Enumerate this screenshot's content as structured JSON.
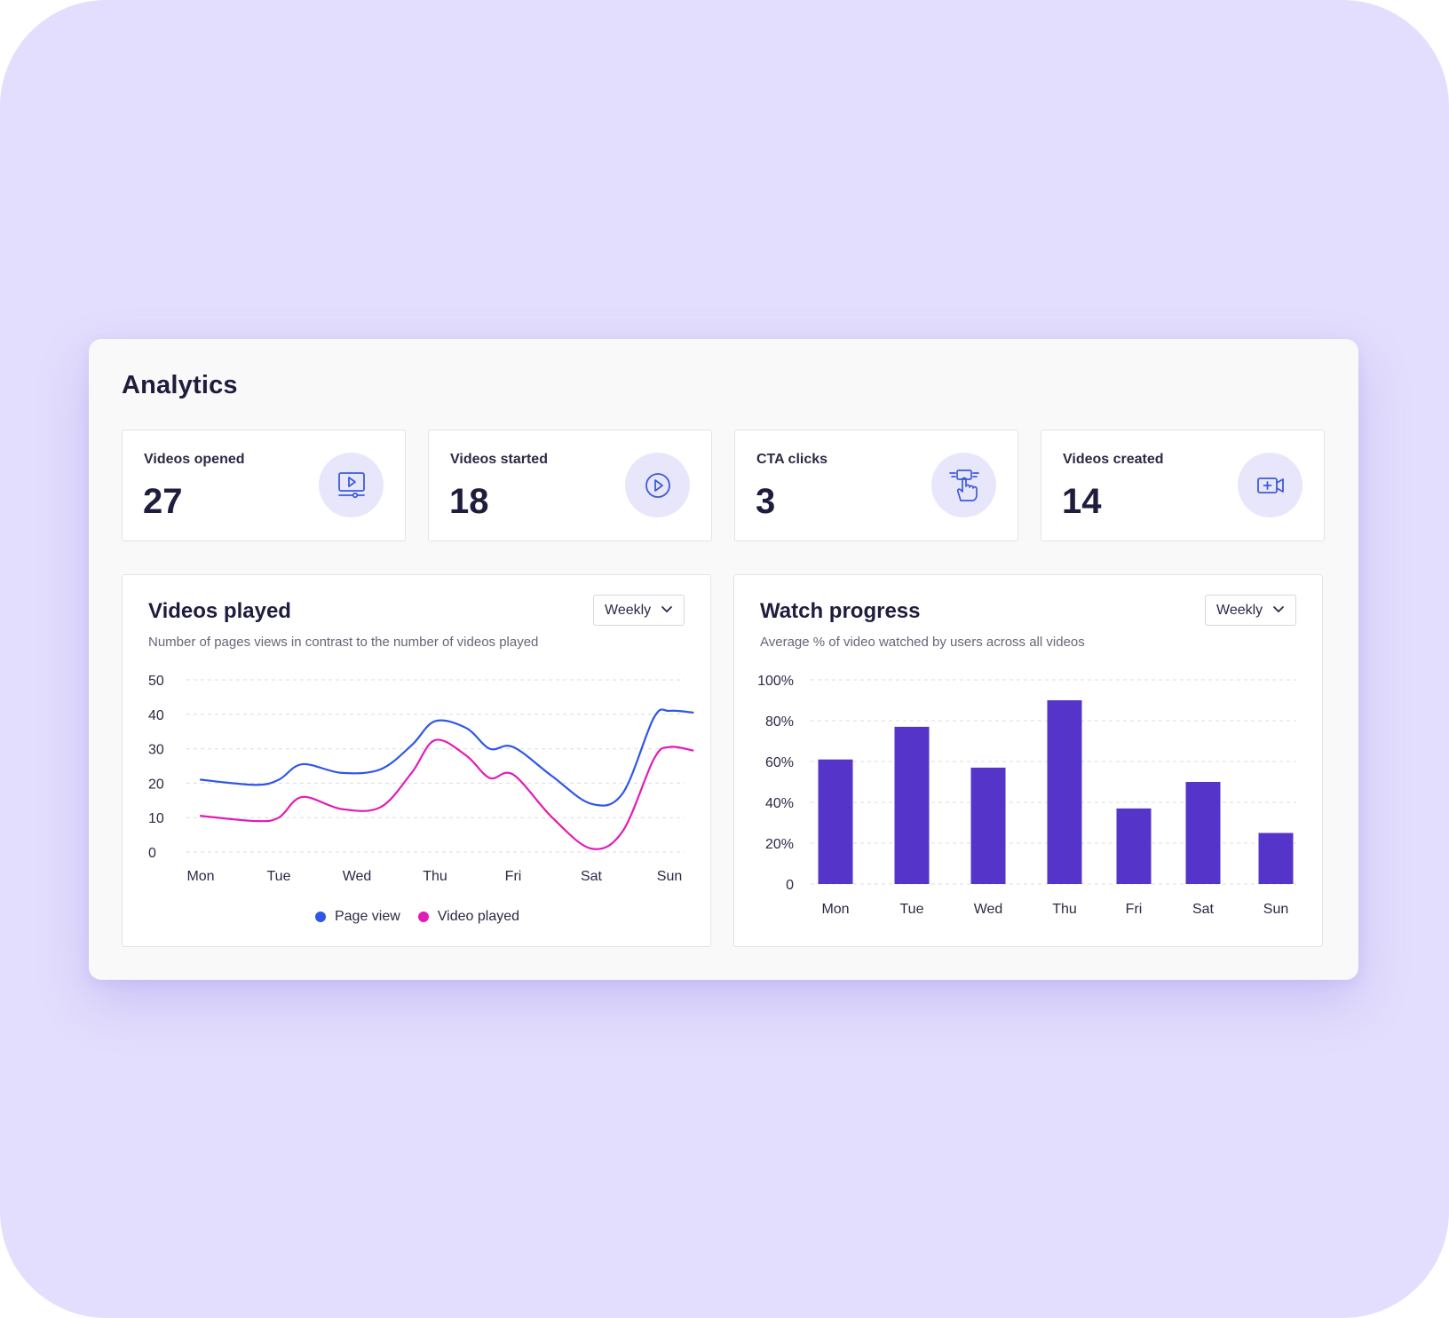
{
  "page": {
    "title": "Analytics"
  },
  "stats": [
    {
      "label": "Videos opened",
      "value": "27",
      "icon": "video-player-icon"
    },
    {
      "label": "Videos started",
      "value": "18",
      "icon": "play-circle-icon"
    },
    {
      "label": "CTA clicks",
      "value": "3",
      "icon": "hand-click-icon"
    },
    {
      "label": "Videos created",
      "value": "14",
      "icon": "video-add-icon"
    }
  ],
  "colors": {
    "backdrop": "#e3defd",
    "icon_accent": "#3d5bdc",
    "icon_bg": "#e8e6fb",
    "page_view": "#2f56e8",
    "video_played": "#e21bb7",
    "bar": "#5535c9"
  },
  "videos_played": {
    "title": "Videos played",
    "subtitle": "Number of pages views in contrast to the number of videos played",
    "period": "Weekly",
    "legend": [
      "Page view",
      "Video played"
    ]
  },
  "watch_progress": {
    "title": "Watch progress",
    "subtitle": "Average % of video watched by users across all videos",
    "period": "Weekly"
  },
  "chart_data": [
    {
      "type": "line",
      "title": "Videos played",
      "categories": [
        "Mon",
        "Tue",
        "Wed",
        "Thu",
        "Fri",
        "Sat",
        "Sun"
      ],
      "y_ticks": [
        "0",
        "10",
        "20",
        "30",
        "40",
        "50"
      ],
      "ylim": [
        0,
        50
      ],
      "grid": true,
      "legend_position": "bottom-center",
      "x": [
        0,
        0.7,
        1.0,
        1.3,
        1.8,
        2.3,
        2.7,
        3.0,
        3.4,
        3.7,
        4.0,
        4.5,
        5.0,
        5.4,
        5.8,
        6.0,
        6.3
      ],
      "series": [
        {
          "name": "Page view",
          "values": [
            21,
            19.5,
            21,
            25.5,
            23,
            24,
            31,
            38,
            36,
            30,
            30.5,
            22,
            14,
            17,
            39,
            41,
            40.5
          ]
        },
        {
          "name": "Video played",
          "values": [
            10.5,
            9,
            10,
            16,
            12.5,
            13,
            23,
            32.5,
            28,
            21.5,
            22.5,
            10,
            1,
            6,
            27,
            30.5,
            29.5
          ]
        }
      ]
    },
    {
      "type": "bar",
      "title": "Watch progress",
      "categories": [
        "Mon",
        "Tue",
        "Wed",
        "Thu",
        "Fri",
        "Sat",
        "Sun"
      ],
      "values": [
        61,
        77,
        57,
        90,
        37,
        50,
        25
      ],
      "y_ticks": [
        "0",
        "20%",
        "40%",
        "60%",
        "80%",
        "100%"
      ],
      "ylim": [
        0,
        100
      ],
      "grid": true
    }
  ]
}
